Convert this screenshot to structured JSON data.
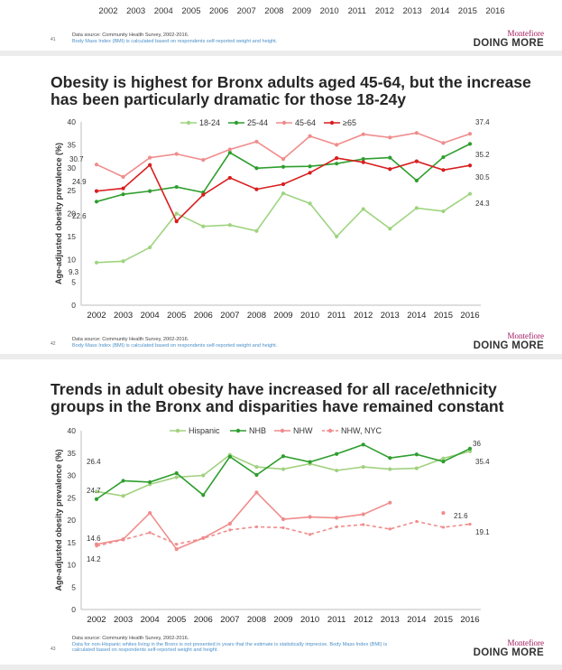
{
  "slide_top": {
    "years": [
      "2002",
      "2003",
      "2004",
      "2005",
      "2006",
      "2007",
      "2008",
      "2009",
      "2010",
      "2011",
      "2012",
      "2013",
      "2014",
      "2015",
      "2016"
    ],
    "slide_number": "41",
    "source": "Data source: Community Health Survey, 2002-2016.",
    "note": "Body Mass Index (BMI) is calculated based on respondents self-reported weight and height.",
    "brand_name": "Montefiore",
    "brand_tagline": "DOING MORE"
  },
  "slide_age": {
    "title": "Obesity is highest for Bronx adults aged 45-64, but the increase has been particularly dramatic for those 18-24y",
    "slide_number": "42",
    "source": "Data source: Community Health Survey, 2002-2016.",
    "note": "Body Mass Index (BMI) is calculated based on respondents self-reported weight and height.",
    "brand_name": "Montefiore",
    "brand_tagline": "DOING MORE"
  },
  "slide_race": {
    "title": "Trends in adult obesity have increased for all race/ethnicity groups in the Bronx and disparities have remained constant",
    "slide_number": "43",
    "source": "Data source: Community Health Survey, 2002-2016.",
    "note": "Data for non-Hispanic whites living in the Bronx is not presented in years that the estimate is statistically imprecise.  Body Mass Index (BMI) is calculated based on respondents self-reported weight and height.",
    "brand_name": "Montefiore",
    "brand_tagline": "DOING MORE"
  },
  "chart_data": [
    {
      "type": "line",
      "title": "Obesity is highest for Bronx adults aged 45-64, but the increase has been particularly dramatic for those 18-24y",
      "xlabel": "",
      "ylabel": "Age-adjusted obesity prevalence (%)",
      "x": [
        "2002",
        "2003",
        "2004",
        "2005",
        "2006",
        "2007",
        "2008",
        "2009",
        "2010",
        "2011",
        "2012",
        "2013",
        "2014",
        "2015",
        "2016"
      ],
      "ylim": [
        0,
        40
      ],
      "yticks": [
        0,
        5,
        10,
        15,
        20,
        25,
        30,
        35,
        40
      ],
      "grid": false,
      "legend": "top-center",
      "series": [
        {
          "name": "18-24",
          "color": "#9fd47f",
          "dashed": false,
          "values": [
            9.3,
            9.6,
            12.6,
            20.0,
            17.2,
            17.5,
            16.2,
            24.4,
            22.2,
            15.0,
            21.0,
            16.7,
            21.2,
            20.5,
            24.3
          ]
        },
        {
          "name": "25-44",
          "color": "#2e9e2e",
          "dashed": false,
          "values": [
            22.6,
            24.2,
            24.9,
            25.8,
            24.6,
            33.3,
            29.9,
            30.2,
            30.3,
            30.9,
            31.9,
            32.2,
            27.2,
            32.3,
            35.2
          ]
        },
        {
          "name": "45-64",
          "color": "#f08c8c",
          "dashed": false,
          "values": [
            30.7,
            28.0,
            32.2,
            33.0,
            31.7,
            34.0,
            35.7,
            31.9,
            36.9,
            35.0,
            37.3,
            36.6,
            37.6,
            35.4,
            37.4
          ]
        },
        {
          "name": "≥65",
          "color": "#d81e1e",
          "dashed": false,
          "values": [
            24.9,
            25.5,
            30.6,
            18.3,
            24.1,
            27.8,
            25.3,
            26.4,
            28.9,
            32.1,
            31.2,
            29.7,
            31.4,
            29.5,
            30.5
          ]
        }
      ],
      "annotations": [
        "30.7",
        "24.9",
        "22.6",
        "9.3",
        "37.4",
        "35.2",
        "30.5",
        "24.3"
      ]
    },
    {
      "type": "line",
      "title": "Trends in adult obesity have increased for all race/ethnicity groups in the Bronx and disparities have remained constant",
      "xlabel": "",
      "ylabel": "Age-adjusted obesity prevalence (%)",
      "x": [
        "2002",
        "2003",
        "2004",
        "2005",
        "2006",
        "2007",
        "2008",
        "2009",
        "2010",
        "2011",
        "2012",
        "2013",
        "2014",
        "2015",
        "2016"
      ],
      "ylim": [
        0,
        40
      ],
      "yticks": [
        0,
        5,
        10,
        15,
        20,
        25,
        30,
        35,
        40
      ],
      "grid": false,
      "legend": "top-center",
      "series": [
        {
          "name": "Hispanic",
          "color": "#a2d17f",
          "dashed": false,
          "values": [
            26.4,
            25.4,
            28.0,
            29.6,
            30.0,
            34.6,
            31.9,
            31.4,
            32.6,
            31.1,
            31.9,
            31.4,
            31.6,
            33.8,
            35.4
          ]
        },
        {
          "name": "NHB",
          "color": "#2e9e2e",
          "dashed": false,
          "values": [
            24.7,
            28.8,
            28.5,
            30.5,
            25.6,
            34.2,
            30.1,
            34.3,
            33.0,
            34.8,
            36.9,
            33.9,
            34.7,
            33.1,
            36.0
          ]
        },
        {
          "name": "NHW",
          "color": "#f08c8c",
          "dashed": false,
          "values": [
            14.6,
            15.7,
            21.6,
            13.5,
            16.0,
            19.2,
            26.2,
            20.2,
            20.7,
            20.5,
            21.3,
            23.9,
            null,
            21.6,
            null
          ]
        },
        {
          "name": "NHW, NYC",
          "color": "#f08c8c",
          "dashed": true,
          "values": [
            14.2,
            15.6,
            17.2,
            14.6,
            15.9,
            17.8,
            18.5,
            18.3,
            16.8,
            18.5,
            19.0,
            18.0,
            19.7,
            18.4,
            19.1
          ]
        }
      ],
      "annotations": [
        "26.4",
        "24.7",
        "14.6",
        "14.2",
        "36",
        "35.4",
        "21.6",
        "19.1"
      ]
    }
  ]
}
